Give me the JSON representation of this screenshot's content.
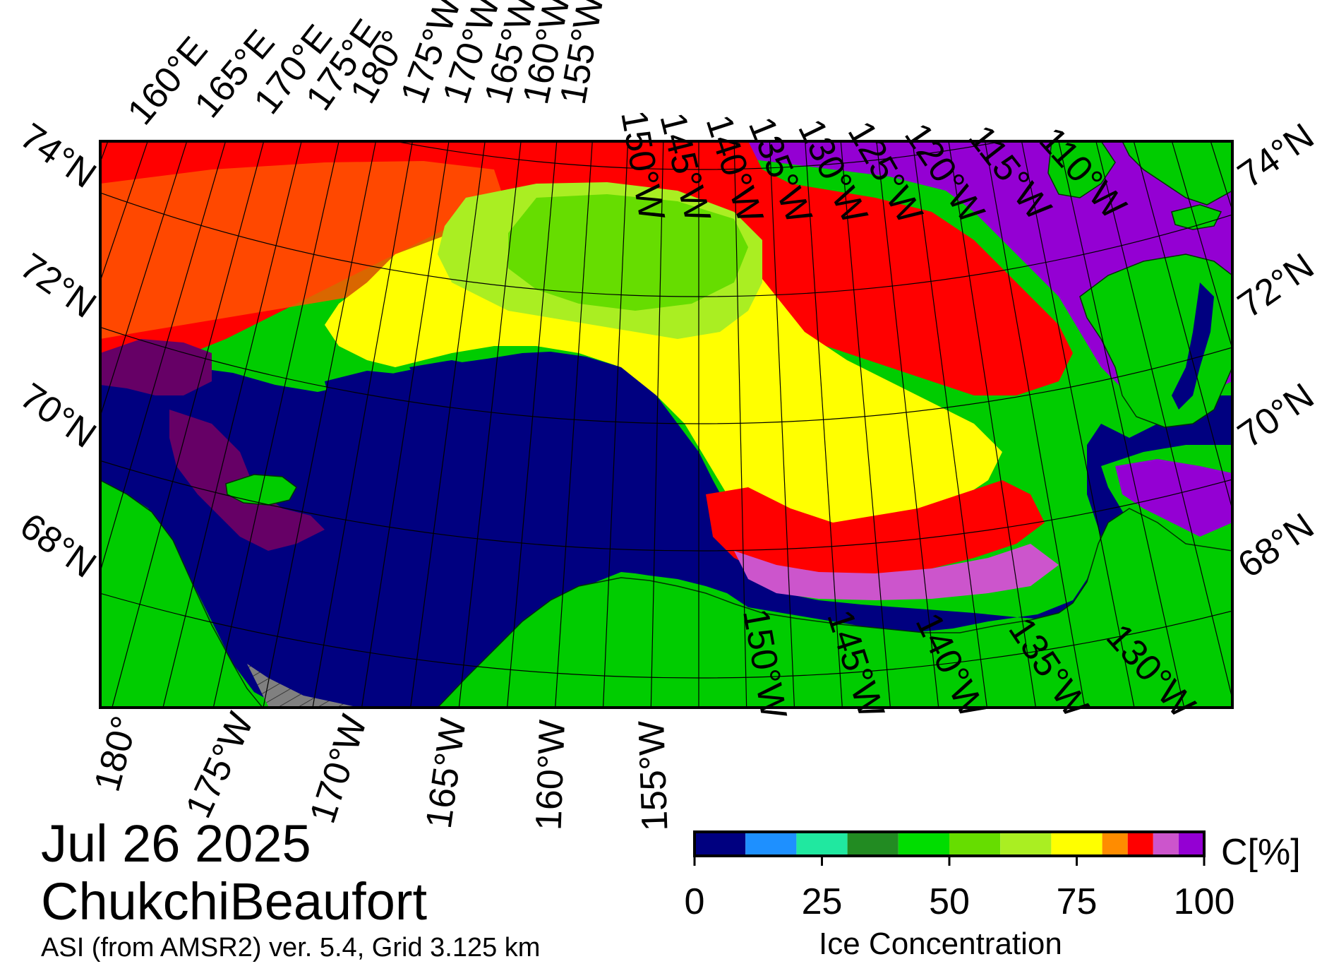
{
  "map": {
    "date": "Jul 26 2025",
    "region": "ChukchiBeaufort",
    "product": "ASI (from AMSR2) ver. 5.4,  Grid 3.125 km",
    "top_lon_labels": [
      "160°E",
      "165°E",
      "170°E",
      "175°E",
      "180°",
      "175°W",
      "170°W",
      "165°W",
      "160°W",
      "155°W",
      "150°W",
      "145°W",
      "140°W",
      "135°W",
      "130°W",
      "125°W",
      "120°W",
      "115°W",
      "110°W"
    ],
    "bottom_lon_labels": [
      "180°",
      "175°W",
      "170°W",
      "165°W",
      "160°W",
      "155°W",
      "150°W",
      "145°W",
      "140°W",
      "135°W",
      "130°W"
    ],
    "left_lat_labels": [
      "74°N",
      "72°N",
      "70°N",
      "68°N"
    ],
    "right_lat_labels": [
      "74°N",
      "72°N",
      "70°N",
      "68°N"
    ],
    "land_color": "#00cc00",
    "open_water_color": "#000080",
    "no_data_color": "#808080"
  },
  "colorbar": {
    "title": "Ice Concentration",
    "unit": "C[%]",
    "tick_labels": [
      "0",
      "25",
      "50",
      "75",
      "100"
    ],
    "tick_values": [
      0,
      25,
      50,
      75,
      100
    ],
    "bins": [
      {
        "from": 0,
        "to": 10,
        "color": "#000080"
      },
      {
        "from": 10,
        "to": 20,
        "color": "#1e90ff"
      },
      {
        "from": 20,
        "to": 30,
        "color": "#20e8a0"
      },
      {
        "from": 30,
        "to": 40,
        "color": "#228b22"
      },
      {
        "from": 40,
        "to": 50,
        "color": "#00dd00"
      },
      {
        "from": 50,
        "to": 60,
        "color": "#66dd00"
      },
      {
        "from": 60,
        "to": 70,
        "color": "#aaee22"
      },
      {
        "from": 70,
        "to": 80,
        "color": "#ffff00"
      },
      {
        "from": 80,
        "to": 85,
        "color": "#ff8c00"
      },
      {
        "from": 85,
        "to": 90,
        "color": "#ff0000"
      },
      {
        "from": 90,
        "to": 95,
        "color": "#cc55cc"
      },
      {
        "from": 95,
        "to": 100,
        "color": "#9400d3"
      }
    ]
  }
}
